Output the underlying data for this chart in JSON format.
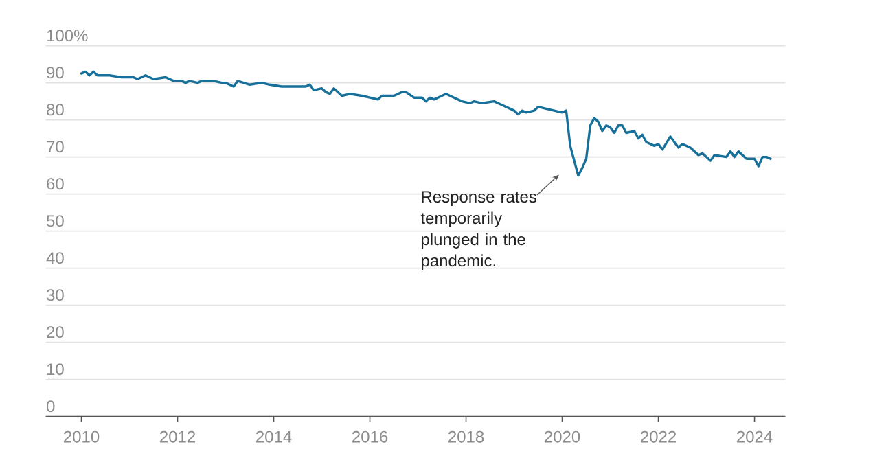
{
  "chart_data": {
    "type": "line",
    "x": [
      "2010-01",
      "2010-02",
      "2010-03",
      "2010-04",
      "2010-05",
      "2010-08",
      "2010-11",
      "2011-02",
      "2011-03",
      "2011-05",
      "2011-07",
      "2011-10",
      "2011-12",
      "2012-02",
      "2012-03",
      "2012-04",
      "2012-06",
      "2012-07",
      "2012-10",
      "2012-12",
      "2013-01",
      "2013-03",
      "2013-04",
      "2013-07",
      "2013-10",
      "2013-12",
      "2014-03",
      "2014-05",
      "2014-09",
      "2014-10",
      "2014-11",
      "2015-01",
      "2015-02",
      "2015-03",
      "2015-04",
      "2015-06",
      "2015-08",
      "2015-11",
      "2016-01",
      "2016-03",
      "2016-04",
      "2016-07",
      "2016-09",
      "2016-10",
      "2016-12",
      "2017-02",
      "2017-03",
      "2017-04",
      "2017-05",
      "2017-06",
      "2017-08",
      "2017-10",
      "2017-12",
      "2018-02",
      "2018-03",
      "2018-05",
      "2018-08",
      "2018-10",
      "2018-12",
      "2019-01",
      "2019-02",
      "2019-03",
      "2019-04",
      "2019-06",
      "2019-07",
      "2019-09",
      "2019-11",
      "2020-01",
      "2020-02",
      "2020-03",
      "2020-04",
      "2020-05",
      "2020-06",
      "2020-07",
      "2020-08",
      "2020-09",
      "2020-10",
      "2020-11",
      "2020-12",
      "2021-01",
      "2021-02",
      "2021-03",
      "2021-04",
      "2021-05",
      "2021-07",
      "2021-08",
      "2021-09",
      "2021-10",
      "2021-12",
      "2022-01",
      "2022-02",
      "2022-04",
      "2022-06",
      "2022-07",
      "2022-09",
      "2022-11",
      "2022-12",
      "2023-02",
      "2023-03",
      "2023-06",
      "2023-07",
      "2023-08",
      "2023-09",
      "2023-11",
      "2024-01",
      "2024-02",
      "2024-03",
      "2024-04",
      "2024-05"
    ],
    "values": [
      92.5,
      93,
      92,
      93,
      92,
      92,
      91.5,
      91.5,
      91,
      92,
      91,
      91.5,
      90.5,
      90.5,
      90,
      90.5,
      90,
      90.5,
      90.5,
      90,
      90,
      89,
      90.5,
      89.5,
      90,
      89.5,
      89,
      89,
      89,
      89.5,
      88,
      88.5,
      87.5,
      87,
      88.5,
      86.5,
      87,
      86.5,
      86,
      85.5,
      86.5,
      86.5,
      87.5,
      87.5,
      86,
      86,
      85,
      86,
      85.5,
      86,
      87,
      86,
      85,
      84.5,
      85,
      84.5,
      85,
      84,
      83,
      82.5,
      81.5,
      82.5,
      82,
      82.5,
      83.5,
      83,
      82.5,
      82,
      82.5,
      73,
      69,
      65,
      67,
      69.5,
      78.5,
      80.5,
      79.5,
      77,
      78.5,
      78,
      76.5,
      78.5,
      78.5,
      76.5,
      77,
      75,
      76,
      74,
      73,
      73.5,
      72,
      75.5,
      72.5,
      73.5,
      72.5,
      70.5,
      71,
      69,
      70.5,
      70,
      71.5,
      70,
      71.5,
      69.5,
      69.5,
      67.5,
      70,
      70,
      69.5
    ],
    "color": "#16709a",
    "xlim": [
      "2009-04-04",
      "2024-08-22"
    ],
    "xticks": [
      "2010",
      "2012",
      "2014",
      "2016",
      "2018",
      "2020",
      "2022",
      "2024"
    ],
    "ylim": [
      0,
      100
    ],
    "yticks": [
      0,
      10,
      20,
      30,
      40,
      50,
      60,
      70,
      80,
      90,
      {
        "value": 100,
        "label": "100%"
      }
    ],
    "grid": "y",
    "marker": "none",
    "line_style": "solid",
    "annotations": [
      {
        "text": "Response rates temporarily plunged in the pandemic.",
        "x": "2020-04",
        "y": 69
      }
    ]
  }
}
